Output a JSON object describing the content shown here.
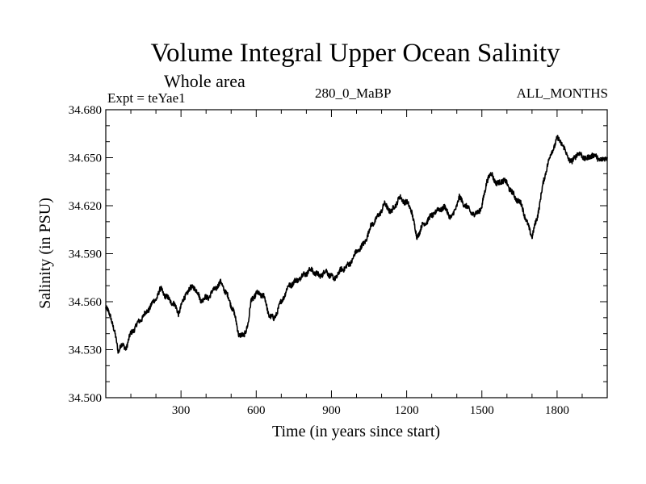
{
  "header": {
    "title": "Volume Integral Upper Ocean Salinity",
    "subtitle": "Whole area",
    "expt_label": "Expt = teYae1",
    "center_label": "280_0_MaBP",
    "right_label": "ALL_MONTHS"
  },
  "chart_data": {
    "type": "line",
    "title": "Volume Integral Upper Ocean Salinity",
    "xlabel": "Time (in years since start)",
    "ylabel": "Salinity (in PSU)",
    "xlim": [
      0,
      2000
    ],
    "ylim": [
      34.5,
      34.68
    ],
    "xticks": [
      300,
      600,
      900,
      1200,
      1500,
      1800
    ],
    "xtick_labels": [
      "300",
      "600",
      "900",
      "1200",
      "1500",
      "1800"
    ],
    "yticks": [
      34.5,
      34.53,
      34.56,
      34.59,
      34.62,
      34.65,
      34.68
    ],
    "ytick_labels": [
      "34.500",
      "34.530",
      "34.560",
      "34.590",
      "34.620",
      "34.650",
      "34.680"
    ],
    "grid": false,
    "line_color": "#000000",
    "series": [
      {
        "name": "Salinity",
        "x": [
          0,
          20,
          40,
          50,
          60,
          80,
          100,
          130,
          160,
          200,
          220,
          240,
          270,
          290,
          320,
          350,
          380,
          410,
          440,
          460,
          490,
          510,
          530,
          550,
          570,
          580,
          600,
          630,
          650,
          670,
          700,
          730,
          760,
          790,
          820,
          850,
          880,
          910,
          940,
          970,
          1000,
          1030,
          1060,
          1090,
          1110,
          1140,
          1170,
          1200,
          1220,
          1240,
          1260,
          1290,
          1320,
          1350,
          1380,
          1410,
          1440,
          1470,
          1500,
          1520,
          1540,
          1560,
          1580,
          1600,
          1620,
          1640,
          1660,
          1680,
          1700,
          1720,
          1740,
          1760,
          1780,
          1800,
          1820,
          1840,
          1860,
          1880,
          1900,
          1920,
          1940,
          1960,
          1980,
          2000
        ],
        "values": [
          34.556,
          34.551,
          34.537,
          34.529,
          34.533,
          34.531,
          34.54,
          34.547,
          34.553,
          34.562,
          34.568,
          34.563,
          34.559,
          34.553,
          34.565,
          34.57,
          34.561,
          34.563,
          34.569,
          34.572,
          34.562,
          34.554,
          34.54,
          34.538,
          34.548,
          34.561,
          34.565,
          34.564,
          34.552,
          34.549,
          34.56,
          34.57,
          34.573,
          34.577,
          34.58,
          34.576,
          34.579,
          34.574,
          34.58,
          34.583,
          34.591,
          34.596,
          34.608,
          34.614,
          34.621,
          34.616,
          34.625,
          34.622,
          34.617,
          34.6,
          34.607,
          34.612,
          34.617,
          34.619,
          34.612,
          34.625,
          34.619,
          34.614,
          34.619,
          34.636,
          34.64,
          34.633,
          34.636,
          34.634,
          34.628,
          34.624,
          34.62,
          34.609,
          34.601,
          34.612,
          34.63,
          34.645,
          34.654,
          34.662,
          34.659,
          34.651,
          34.647,
          34.653,
          34.651,
          34.649,
          34.652,
          34.65,
          34.648,
          34.651
        ]
      }
    ]
  }
}
